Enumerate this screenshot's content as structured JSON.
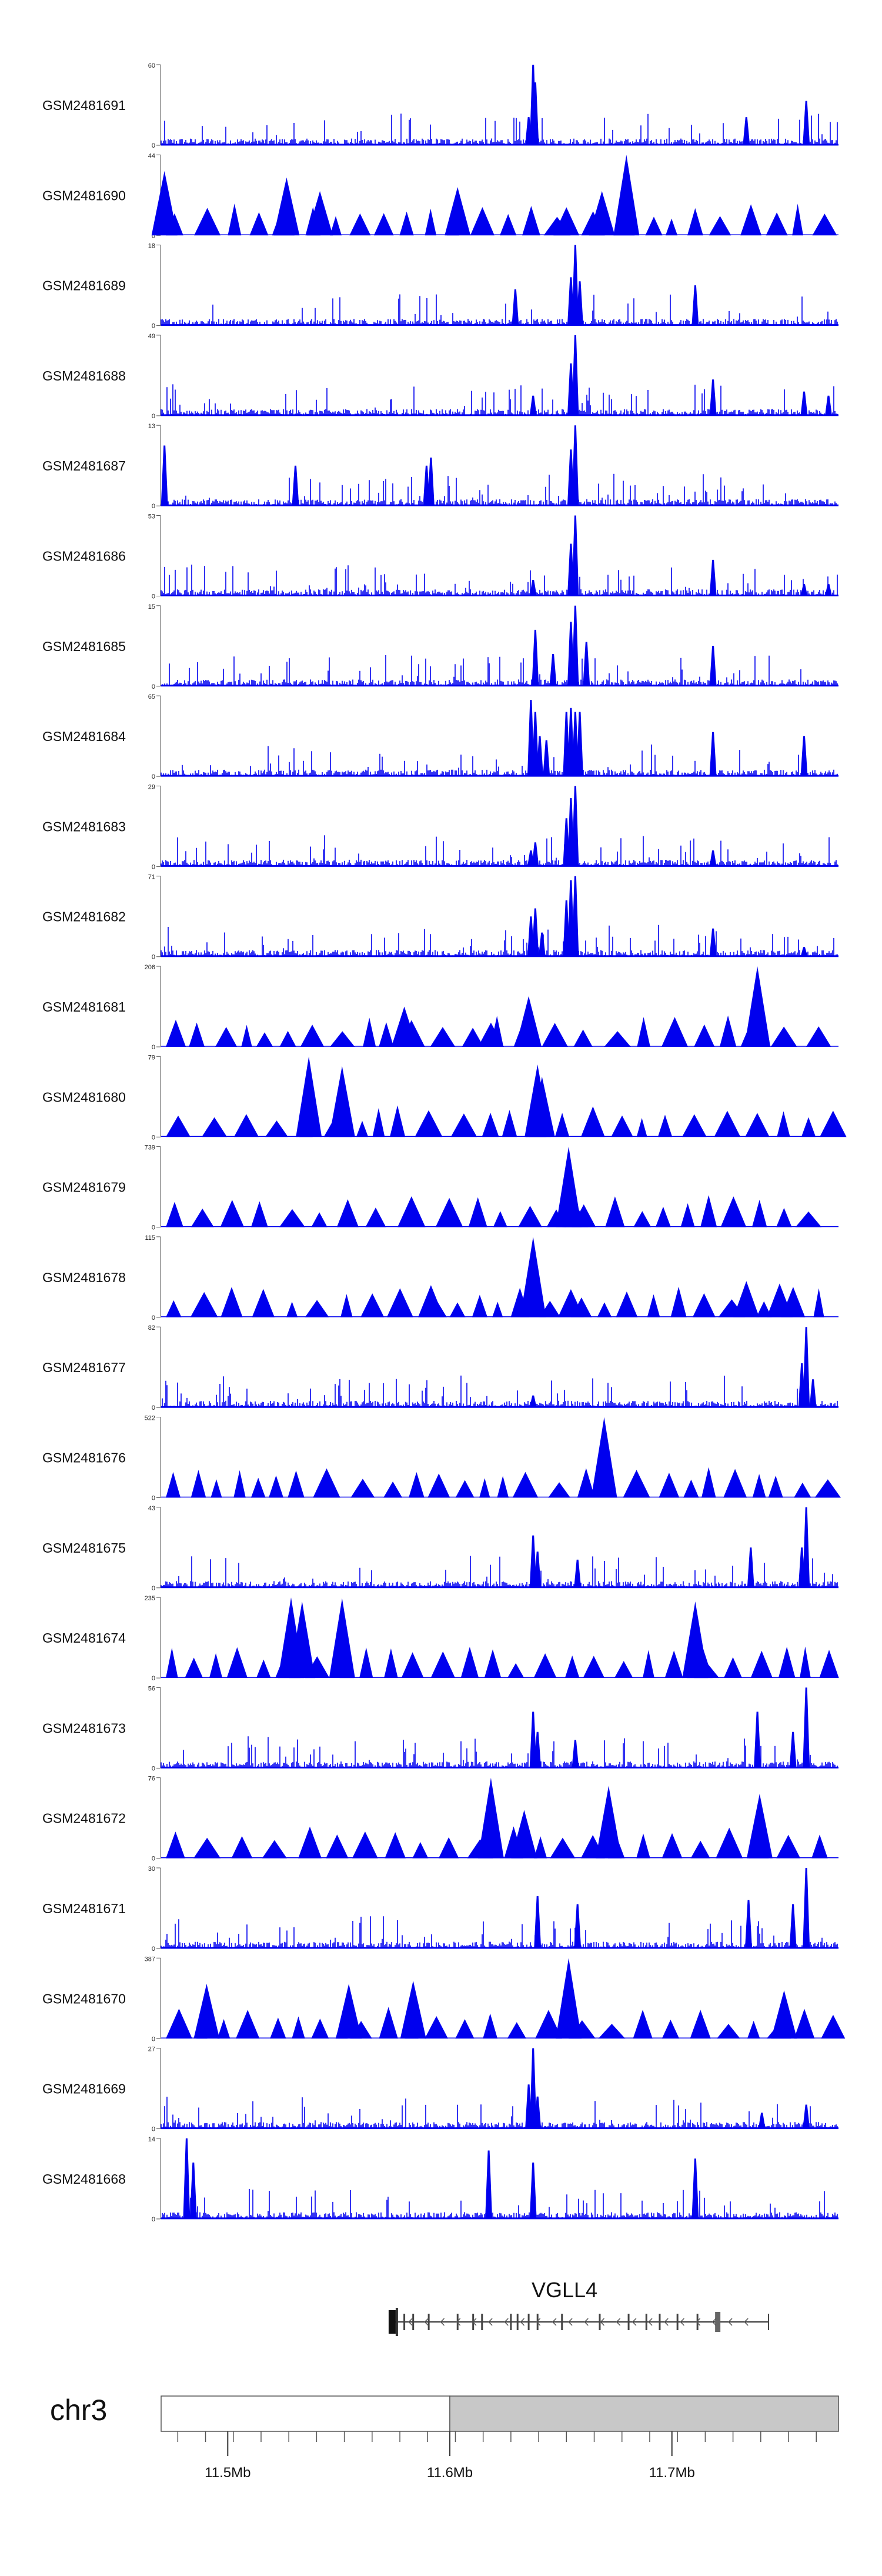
{
  "chart_data": {
    "type": "area",
    "colors": {
      "signal": "#0000ee",
      "axis": "#555555",
      "ideo_light": "#ffffff",
      "ideo_dark": "#c8c8c8",
      "gene": "#333333"
    },
    "x_range_mb": [
      11.47,
      11.775
    ],
    "tracks": [
      {
        "name": "GSM2481691",
        "ymax": 60,
        "ymin": 0,
        "style": "dense",
        "peaks": [
          [
            11.6375,
            1.0
          ],
          [
            11.6385,
            0.78
          ],
          [
            11.6355,
            0.35
          ],
          [
            11.7335,
            0.35
          ],
          [
            11.7605,
            0.55
          ]
        ]
      },
      {
        "name": "GSM2481690",
        "ymax": 44,
        "ymin": 0,
        "style": "tri",
        "peaks": [
          [
            11.4715,
            0.8
          ],
          [
            11.5265,
            0.72
          ],
          [
            11.6035,
            0.6
          ],
          [
            11.6795,
            1.0
          ],
          [
            11.5415,
            0.55
          ],
          [
            11.6685,
            0.55
          ],
          [
            11.6525,
            0.35
          ]
        ]
      },
      {
        "name": "GSM2481689",
        "ymax": 18,
        "ymin": 0,
        "style": "dense",
        "peaks": [
          [
            11.6565,
            1.0
          ],
          [
            11.6545,
            0.6
          ],
          [
            11.6585,
            0.55
          ],
          [
            11.6295,
            0.45
          ],
          [
            11.7105,
            0.5
          ]
        ]
      },
      {
        "name": "GSM2481688",
        "ymax": 49,
        "ymin": 0,
        "style": "dense",
        "peaks": [
          [
            11.6565,
            1.0
          ],
          [
            11.6545,
            0.65
          ],
          [
            11.6375,
            0.25
          ],
          [
            11.7185,
            0.45
          ],
          [
            11.7595,
            0.3
          ],
          [
            11.7705,
            0.25
          ]
        ]
      },
      {
        "name": "GSM2481687",
        "ymax": 13,
        "ymin": 0,
        "style": "dense",
        "peaks": [
          [
            11.4715,
            0.75
          ],
          [
            11.6565,
            1.0
          ],
          [
            11.6545,
            0.7
          ],
          [
            11.5305,
            0.5
          ],
          [
            11.5915,
            0.6
          ],
          [
            11.5895,
            0.5
          ]
        ]
      },
      {
        "name": "GSM2481686",
        "ymax": 53,
        "ymin": 0,
        "style": "dense",
        "peaks": [
          [
            11.6565,
            1.0
          ],
          [
            11.6545,
            0.65
          ],
          [
            11.6375,
            0.2
          ],
          [
            11.7185,
            0.45
          ],
          [
            11.7595,
            0.15
          ],
          [
            11.7705,
            0.15
          ]
        ]
      },
      {
        "name": "GSM2481685",
        "ymax": 15,
        "ymin": 0,
        "style": "dense",
        "peaks": [
          [
            11.6565,
            1.0
          ],
          [
            11.6545,
            0.8
          ],
          [
            11.6385,
            0.7
          ],
          [
            11.6465,
            0.4
          ],
          [
            11.6615,
            0.55
          ],
          [
            11.7185,
            0.5
          ]
        ]
      },
      {
        "name": "GSM2481684",
        "ymax": 65,
        "ymin": 0,
        "style": "dense",
        "peaks": [
          [
            11.6365,
            0.95
          ],
          [
            11.6385,
            0.8
          ],
          [
            11.6405,
            0.5
          ],
          [
            11.6435,
            0.45
          ],
          [
            11.6525,
            0.8
          ],
          [
            11.6545,
            0.85
          ],
          [
            11.6565,
            0.8
          ],
          [
            11.6585,
            0.8
          ],
          [
            11.7185,
            0.55
          ],
          [
            11.7595,
            0.5
          ]
        ]
      },
      {
        "name": "GSM2481683",
        "ymax": 29,
        "ymin": 0,
        "style": "dense",
        "peaks": [
          [
            11.6565,
            1.0
          ],
          [
            11.6545,
            0.85
          ],
          [
            11.6525,
            0.6
          ],
          [
            11.6385,
            0.3
          ],
          [
            11.6365,
            0.2
          ],
          [
            11.7185,
            0.2
          ]
        ]
      },
      {
        "name": "GSM2481682",
        "ymax": 71,
        "ymin": 0,
        "style": "dense",
        "peaks": [
          [
            11.6545,
            0.95
          ],
          [
            11.6565,
            1.0
          ],
          [
            11.6525,
            0.7
          ],
          [
            11.6385,
            0.6
          ],
          [
            11.6365,
            0.5
          ],
          [
            11.6415,
            0.3
          ],
          [
            11.7185,
            0.35
          ],
          [
            11.7595,
            0.12
          ]
        ]
      },
      {
        "name": "GSM2481681",
        "ymax": 206,
        "ymin": 0,
        "style": "tri",
        "peaks": [
          [
            11.7385,
            1.0
          ],
          [
            11.6355,
            0.63
          ],
          [
            11.5795,
            0.5
          ],
          [
            11.6185,
            0.3
          ]
        ]
      },
      {
        "name": "GSM2481680",
        "ymax": 79,
        "ymin": 0,
        "style": "tri",
        "peaks": [
          [
            11.5365,
            1.0
          ],
          [
            11.5515,
            0.88
          ],
          [
            11.6395,
            0.9
          ],
          [
            11.6415,
            0.75
          ]
        ]
      },
      {
        "name": "GSM2481679",
        "ymax": 739,
        "ymin": 0,
        "style": "tri",
        "peaks": [
          [
            11.6535,
            1.0
          ],
          [
            11.6565,
            0.3
          ],
          [
            11.6575,
            0.2
          ]
        ]
      },
      {
        "name": "GSM2481678",
        "ymax": 115,
        "ymin": 0,
        "style": "tri",
        "peaks": [
          [
            11.6375,
            1.0
          ],
          [
            11.5915,
            0.4
          ],
          [
            11.7335,
            0.45
          ],
          [
            11.7485,
            0.42
          ],
          [
            11.6545,
            0.35
          ]
        ]
      },
      {
        "name": "GSM2481677",
        "ymax": 82,
        "ymin": 0,
        "style": "dense",
        "peaks": [
          [
            11.7605,
            1.0
          ],
          [
            11.7585,
            0.55
          ],
          [
            11.7635,
            0.35
          ],
          [
            11.6375,
            0.15
          ]
        ]
      },
      {
        "name": "GSM2481676",
        "ymax": 522,
        "ymin": 0,
        "style": "tri",
        "peaks": [
          [
            11.6695,
            1.0
          ]
        ]
      },
      {
        "name": "GSM2481675",
        "ymax": 43,
        "ymin": 0,
        "style": "dense",
        "peaks": [
          [
            11.7605,
            1.0
          ],
          [
            11.6375,
            0.65
          ],
          [
            11.6395,
            0.45
          ],
          [
            11.7585,
            0.5
          ],
          [
            11.6575,
            0.35
          ],
          [
            11.7355,
            0.5
          ]
        ]
      },
      {
        "name": "GSM2481674",
        "ymax": 235,
        "ymin": 0,
        "style": "tri",
        "peaks": [
          [
            11.5285,
            1.0
          ],
          [
            11.5335,
            0.95
          ],
          [
            11.5515,
            0.99
          ],
          [
            11.7105,
            0.95
          ],
          [
            11.7125,
            0.5
          ]
        ]
      },
      {
        "name": "GSM2481673",
        "ymax": 56,
        "ymin": 0,
        "style": "dense",
        "peaks": [
          [
            11.7605,
            1.0
          ],
          [
            11.7385,
            0.7
          ],
          [
            11.6375,
            0.7
          ],
          [
            11.6395,
            0.45
          ],
          [
            11.7545,
            0.45
          ],
          [
            11.6565,
            0.35
          ]
        ]
      },
      {
        "name": "GSM2481672",
        "ymax": 76,
        "ymin": 0,
        "style": "tri",
        "peaks": [
          [
            11.6185,
            1.0
          ],
          [
            11.6715,
            0.9
          ],
          [
            11.6335,
            0.6
          ],
          [
            11.7395,
            0.8
          ]
        ]
      },
      {
        "name": "GSM2481671",
        "ymax": 30,
        "ymin": 0,
        "style": "dense",
        "peaks": [
          [
            11.7605,
            1.0
          ],
          [
            11.6395,
            0.65
          ],
          [
            11.6575,
            0.55
          ],
          [
            11.7345,
            0.6
          ],
          [
            11.7545,
            0.55
          ]
        ]
      },
      {
        "name": "GSM2481670",
        "ymax": 387,
        "ymin": 0,
        "style": "tri",
        "peaks": [
          [
            11.6535,
            1.0
          ],
          [
            11.5545,
            0.68
          ],
          [
            11.5835,
            0.72
          ],
          [
            11.4905,
            0.68
          ],
          [
            11.7505,
            0.6
          ]
        ]
      },
      {
        "name": "GSM2481669",
        "ymax": 27,
        "ymin": 0,
        "style": "dense",
        "peaks": [
          [
            11.6375,
            1.0
          ],
          [
            11.6355,
            0.55
          ],
          [
            11.6395,
            0.4
          ],
          [
            11.7605,
            0.3
          ],
          [
            11.7405,
            0.2
          ]
        ]
      },
      {
        "name": "GSM2481668",
        "ymax": 14,
        "ymin": 0,
        "style": "dense",
        "peaks": [
          [
            11.4815,
            1.0
          ],
          [
            11.4845,
            0.7
          ],
          [
            11.6175,
            0.85
          ],
          [
            11.7105,
            0.75
          ],
          [
            11.6375,
            0.7
          ]
        ]
      }
    ],
    "gene": {
      "name": "VGLL4",
      "start_mb": 11.5735,
      "end_mb": 11.7435,
      "strand": "-"
    },
    "chromosome": {
      "name": "chr3",
      "split_mb": 11.6
    },
    "xticks": [
      11.5,
      11.6,
      11.7
    ],
    "xtick_labels": [
      "11.5Mb",
      "11.6Mb",
      "11.7Mb"
    ]
  }
}
